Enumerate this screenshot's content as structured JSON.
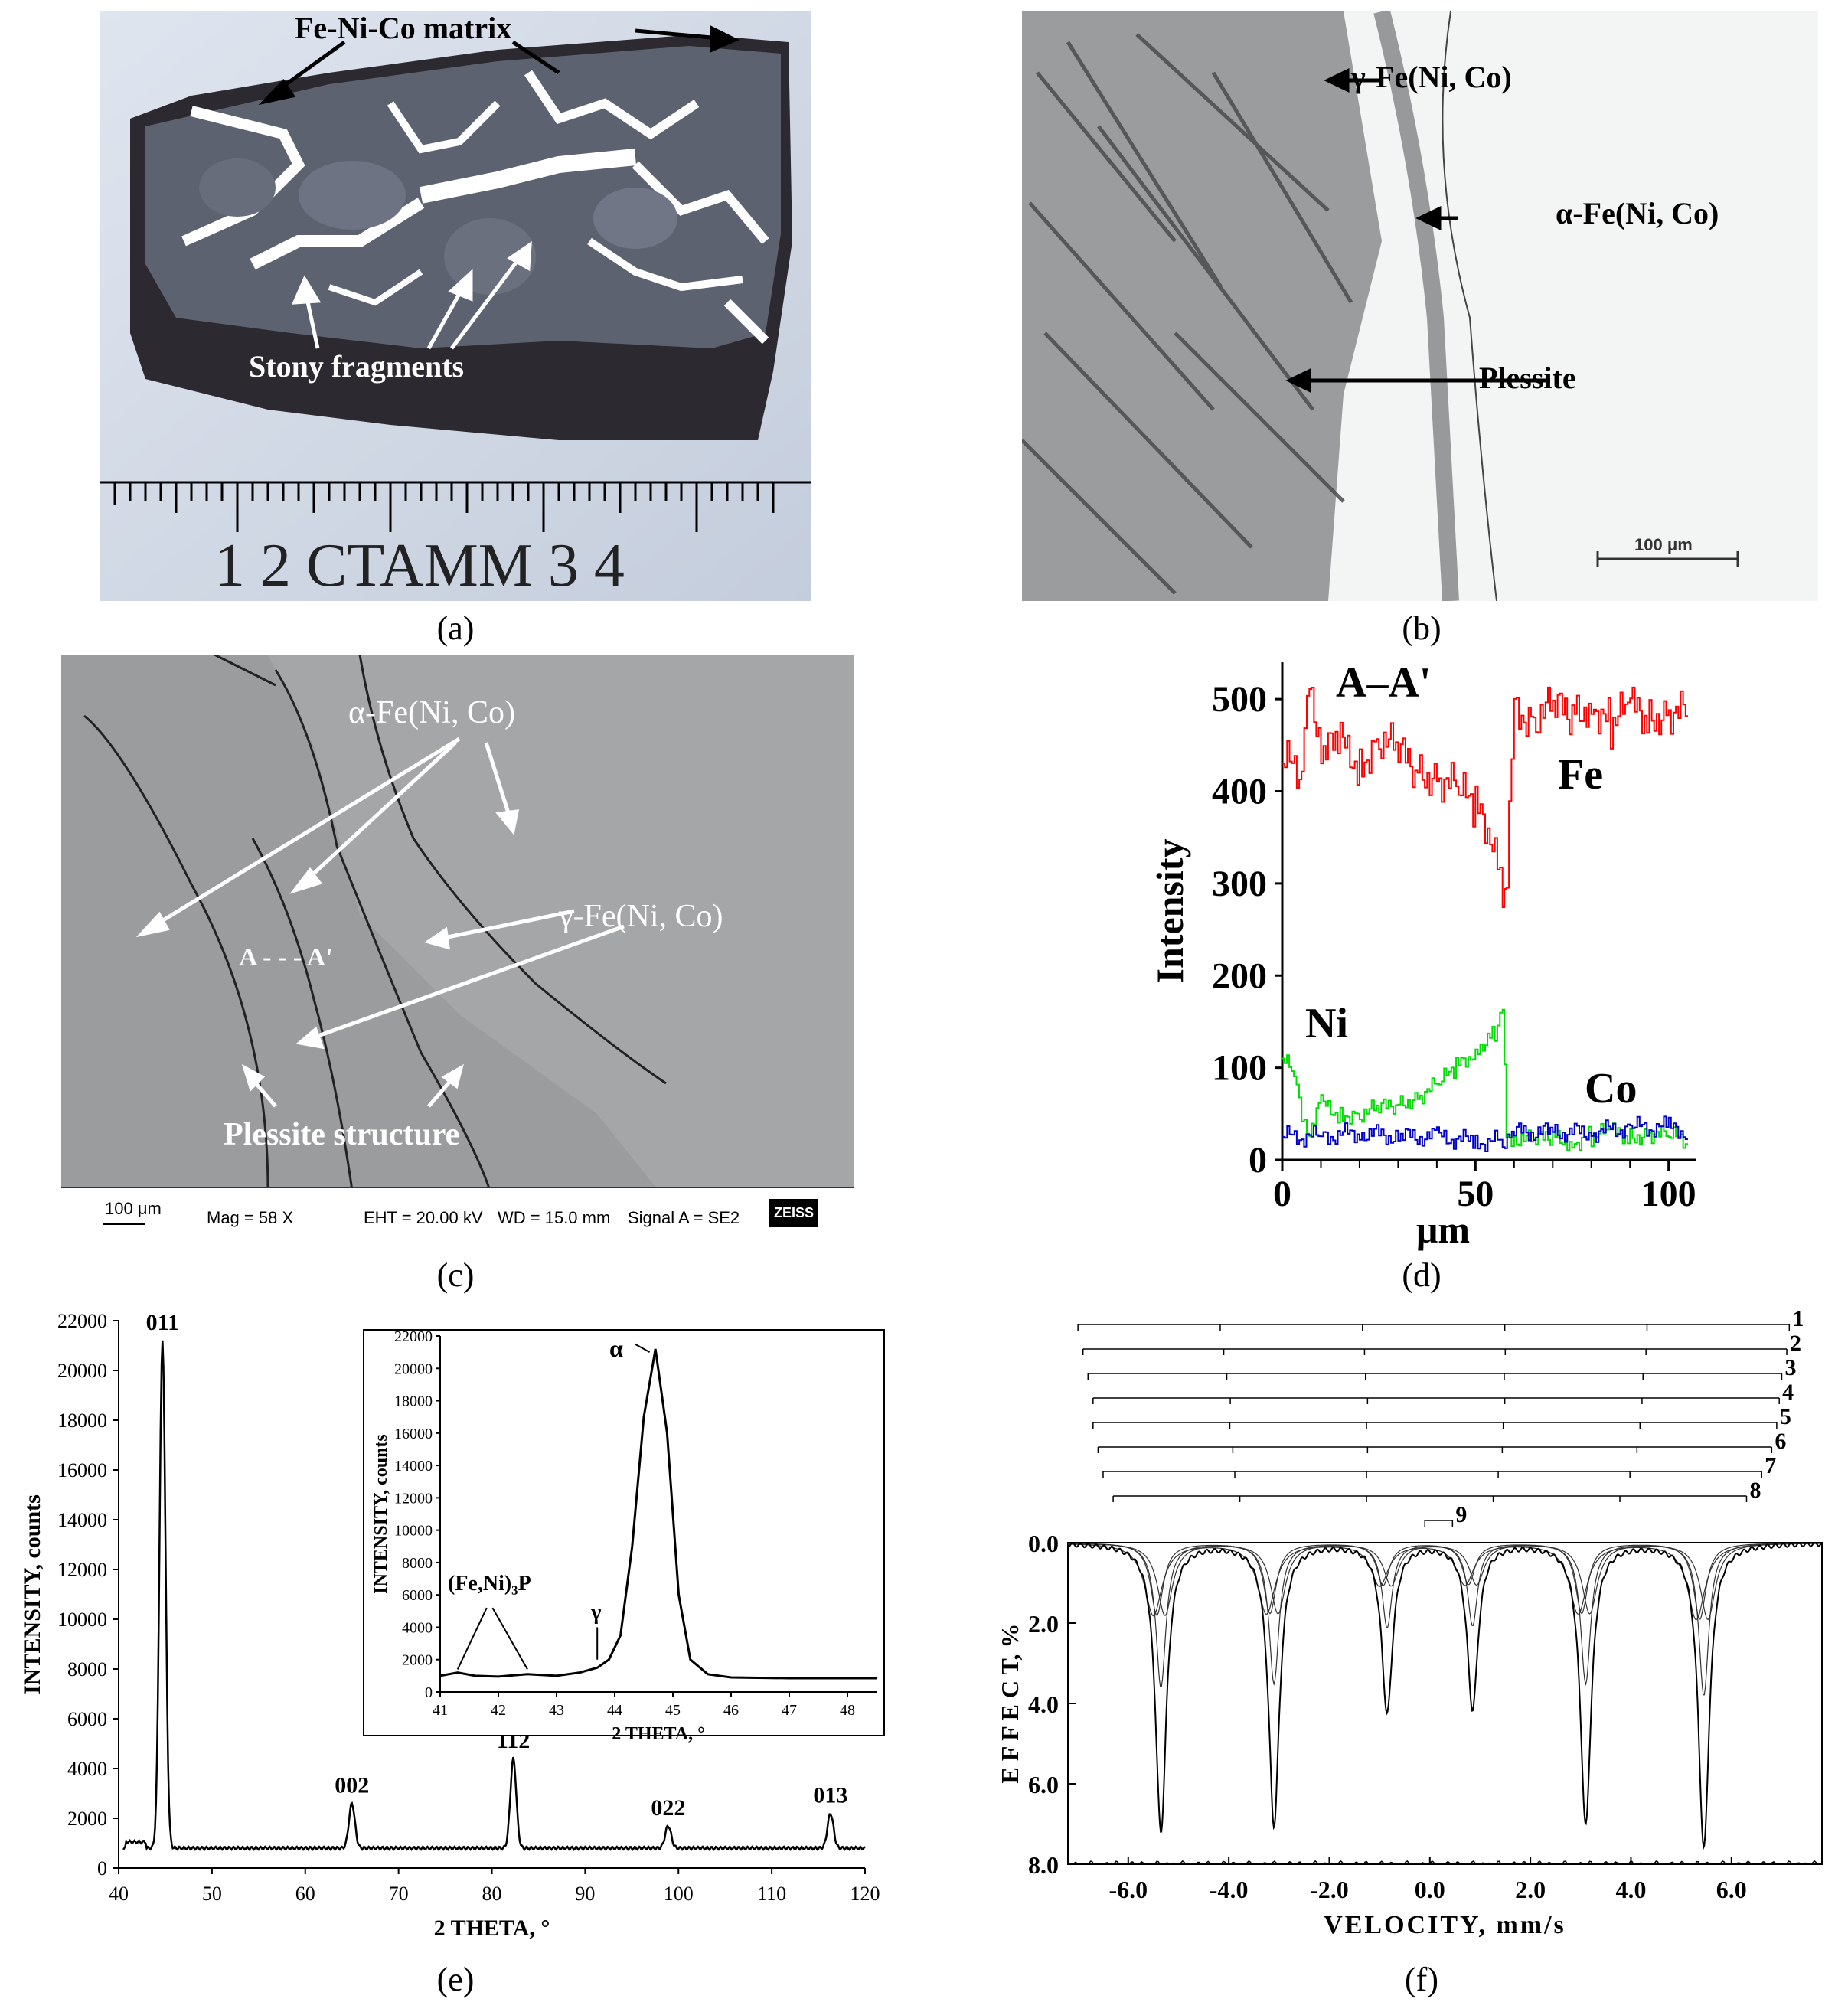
{
  "panels": {
    "a": {
      "caption": "(a)",
      "labels": {
        "matrix": "Fe-Ni-Co matrix",
        "fragments": "Stony fragments"
      },
      "ruler_text": "1  2 CTAMM 3   4"
    },
    "b": {
      "caption": "(b)",
      "labels": {
        "gamma": "γ-Fe(Ni, Co)",
        "alpha": "α-Fe(Ni, Co)",
        "plessite": "Plessite"
      },
      "scale_bar": "100 μm"
    },
    "c": {
      "caption": "(c)",
      "labels": {
        "alpha": "α-Fe(Ni, Co)",
        "gamma": "γ-Fe(Ni, Co)",
        "aa": "A - - - A'",
        "plessite": "Plessite structure"
      },
      "info_bar": {
        "scale": "100 μm",
        "mag": "Mag =    58 X",
        "eht": "EHT = 20.00 kV",
        "wd": "WD = 15.0 mm",
        "signal": "Signal A = SE2",
        "logo": "ZEISS"
      }
    },
    "d": {
      "caption": "(d)"
    },
    "e": {
      "caption": "(e)"
    },
    "f": {
      "caption": "(f)"
    }
  },
  "chart_data": [
    {
      "id": "d",
      "type": "line",
      "title": "A–A'",
      "xlabel": "μm",
      "ylabel": "Intensity",
      "xlim": [
        0,
        107
      ],
      "ylim": [
        0,
        540
      ],
      "xticks": [
        0,
        50,
        100
      ],
      "yticks": [
        0,
        100,
        200,
        300,
        400,
        500
      ],
      "series": [
        {
          "name": "Fe",
          "color": "#ff0000",
          "x": [
            0,
            5,
            7,
            10,
            15,
            20,
            25,
            30,
            35,
            40,
            45,
            50,
            55,
            57,
            58,
            60,
            65,
            70,
            75,
            80,
            85,
            90,
            95,
            100,
            105
          ],
          "y": [
            430,
            420,
            530,
            440,
            450,
            430,
            460,
            440,
            420,
            420,
            400,
            380,
            350,
            300,
            300,
            490,
            480,
            490,
            480,
            500,
            470,
            490,
            480,
            490,
            480
          ]
        },
        {
          "name": "Ni",
          "color": "#00dd00",
          "x": [
            0,
            3,
            5,
            7,
            10,
            15,
            20,
            25,
            30,
            35,
            40,
            45,
            50,
            55,
            57,
            58,
            60,
            65,
            70,
            75,
            80,
            85,
            90,
            95,
            100,
            105
          ],
          "y": [
            110,
            90,
            50,
            30,
            60,
            50,
            50,
            55,
            60,
            70,
            80,
            100,
            120,
            140,
            165,
            20,
            25,
            20,
            25,
            20,
            25,
            30,
            25,
            30,
            25,
            20
          ]
        },
        {
          "name": "Co",
          "color": "#0000cc",
          "x": [
            0,
            10,
            20,
            30,
            40,
            50,
            57,
            60,
            70,
            80,
            90,
            100,
            105
          ],
          "y": [
            25,
            25,
            30,
            25,
            25,
            20,
            20,
            30,
            30,
            30,
            35,
            35,
            30
          ]
        }
      ]
    },
    {
      "id": "e",
      "type": "line",
      "xlabel": "2 THETA, °",
      "ylabel": "INTENSITY, counts",
      "xlim": [
        40,
        120
      ],
      "ylim": [
        0,
        22000
      ],
      "xticks": [
        40,
        50,
        60,
        70,
        80,
        90,
        100,
        110,
        120
      ],
      "yticks": [
        0,
        2000,
        4000,
        6000,
        8000,
        10000,
        12000,
        14000,
        16000,
        18000,
        20000,
        22000
      ],
      "peaks": [
        {
          "label": "011",
          "x": 44.7,
          "y": 21200
        },
        {
          "label": "002",
          "x": 65.0,
          "y": 2600
        },
        {
          "label": "112",
          "x": 82.3,
          "y": 4400
        },
        {
          "label": "022",
          "x": 98.9,
          "y": 1700
        },
        {
          "label": "013",
          "x": 116.3,
          "y": 2200
        }
      ],
      "baseline": 800,
      "inset": {
        "type": "line",
        "xlabel": "2 THETA, °",
        "ylabel": "INTENSITY, counts",
        "xlim": [
          41,
          48.5
        ],
        "ylim": [
          0,
          22000
        ],
        "xticks": [
          41,
          42,
          43,
          44,
          45,
          46,
          47,
          48
        ],
        "yticks": [
          0,
          2000,
          4000,
          6000,
          8000,
          10000,
          12000,
          14000,
          16000,
          18000,
          20000,
          22000
        ],
        "annotations": {
          "alpha": "α",
          "gamma": "γ",
          "phosphide": "(Fe,Ni)₃P"
        },
        "x": [
          41,
          41.3,
          41.6,
          42,
          42.5,
          43,
          43.4,
          43.7,
          43.9,
          44.1,
          44.3,
          44.5,
          44.7,
          44.9,
          45.1,
          45.3,
          45.6,
          46,
          47,
          48,
          48.5
        ],
        "y": [
          1000,
          1200,
          1000,
          950,
          1100,
          1000,
          1200,
          1500,
          2000,
          3500,
          9000,
          17000,
          21200,
          16000,
          6000,
          2000,
          1100,
          900,
          850,
          850,
          850
        ]
      }
    },
    {
      "id": "f",
      "type": "line",
      "xlabel": "VELOCITY,  mm/s",
      "ylabel": "E F F E C T,  %",
      "xlim": [
        -7.2,
        7.8
      ],
      "ylim": [
        0.0,
        8.0
      ],
      "xticks": [
        -6.0,
        -4.0,
        -2.0,
        0.0,
        2.0,
        4.0,
        6.0
      ],
      "yticks": [
        0.0,
        2.0,
        4.0,
        6.0,
        8.0
      ],
      "yinverted": true,
      "peak_velocities": [
        -5.35,
        -3.1,
        -0.85,
        0.85,
        3.1,
        5.45
      ],
      "peak_depths": [
        7.2,
        7.0,
        4.2,
        4.1,
        7.0,
        7.6
      ],
      "subspectra_labels": [
        "1",
        "2",
        "3",
        "4",
        "5",
        "6",
        "7",
        "8",
        "9"
      ]
    }
  ]
}
